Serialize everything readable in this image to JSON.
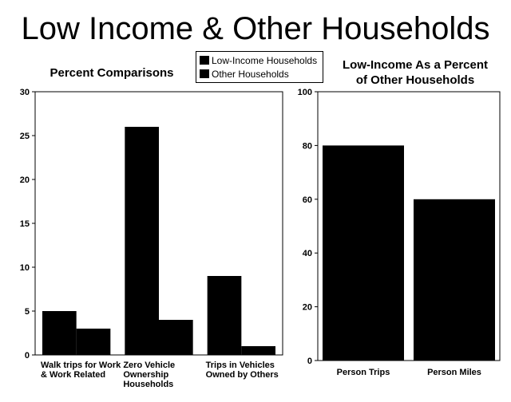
{
  "title": "Low Income & Other Households",
  "legend": {
    "items": [
      {
        "label": "Low-Income Households",
        "color": "#000000"
      },
      {
        "label": "Other Households",
        "color": "#000000"
      }
    ]
  },
  "chart_data": [
    {
      "type": "bar",
      "title": "Percent Comparisons",
      "categories": [
        "Walk trips for Work & Work Related",
        "Zero Vehicle Ownership Households",
        "Trips in Vehicles Owned by Others"
      ],
      "category_lines": [
        [
          "Walk trips for Work",
          "& Work Related"
        ],
        [
          "Zero Vehicle",
          "Ownership",
          "Households"
        ],
        [
          "Trips in Vehicles",
          "Owned by Others"
        ]
      ],
      "series": [
        {
          "name": "Low-Income Households",
          "values": [
            5,
            26,
            9
          ],
          "color": "#000000"
        },
        {
          "name": "Other Households",
          "values": [
            3,
            4,
            1
          ],
          "color": "#000000"
        }
      ],
      "ylim": [
        0,
        30
      ],
      "yticks": [
        0,
        5,
        10,
        15,
        20,
        25,
        30
      ],
      "grid": false,
      "legend_position": "top"
    },
    {
      "type": "bar",
      "title": "Low-Income  As a Percent of Other Households",
      "title_lines": [
        "Low-Income  As a Percent",
        "of Other Households"
      ],
      "categories": [
        "Person Trips",
        "Person Miles"
      ],
      "values": [
        80,
        60
      ],
      "color": "#000000",
      "ylim": [
        0,
        100
      ],
      "yticks": [
        0,
        20,
        40,
        60,
        80,
        100
      ],
      "grid": false
    }
  ]
}
